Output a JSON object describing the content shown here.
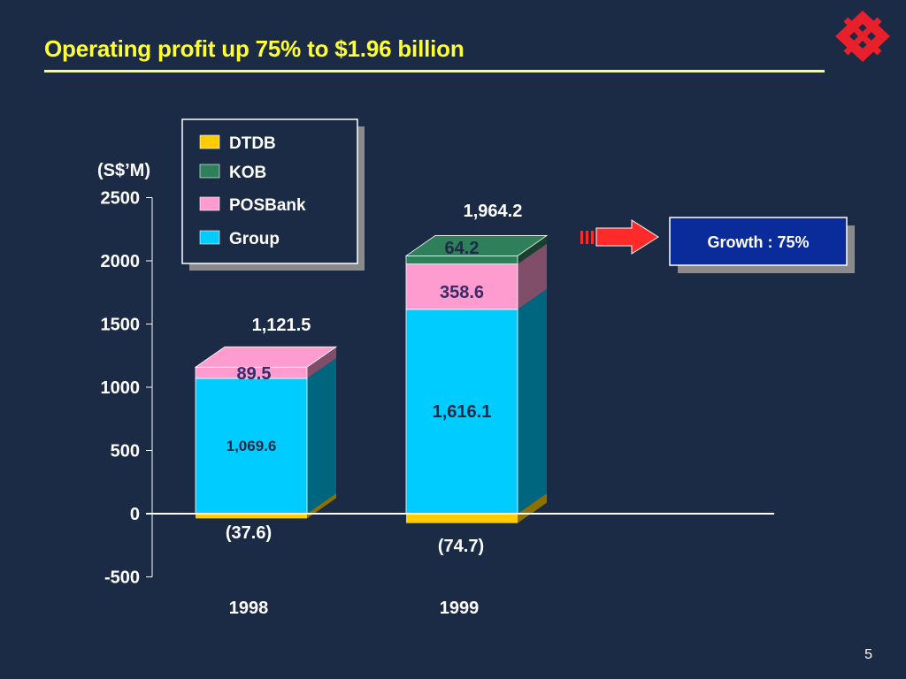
{
  "slide": {
    "title": "Operating profit up 75% to $1.96 billion",
    "page_number": "5",
    "growth_label": "Growth : 75%"
  },
  "colors": {
    "background": "#1c2b45",
    "title": "#ffff33",
    "DTDB": "#ffcc00",
    "KOB": "#2f7f5a",
    "POSBank": "#ff9ccf",
    "Group": "#00ccff",
    "growth_box": "#0a2c9a",
    "arrow": "#ff2a2a"
  },
  "chart_data": {
    "type": "bar",
    "stacked": true,
    "unit_label": "(S$’M)",
    "categories": [
      "1998",
      "1999"
    ],
    "ylim": [
      -500,
      2500
    ],
    "yticks": [
      -500,
      0,
      500,
      1000,
      1500,
      2000,
      2500
    ],
    "series": [
      {
        "name": "DTDB",
        "values": [
          -37.6,
          -74.7
        ],
        "labels": [
          "(37.6)",
          "(74.7)"
        ]
      },
      {
        "name": "KOB",
        "values": [
          0,
          64.2
        ],
        "labels": [
          "",
          "64.2"
        ]
      },
      {
        "name": "POSBank",
        "values": [
          89.5,
          358.6
        ],
        "labels": [
          "89.5",
          "358.6"
        ]
      },
      {
        "name": "Group",
        "values": [
          1069.6,
          1616.1
        ],
        "labels": [
          "1,069.6",
          "1,616.1"
        ]
      }
    ],
    "totals": [
      1121.5,
      1964.2
    ],
    "total_labels": [
      "1,121.5",
      "1,964.2"
    ],
    "legend_order": [
      "DTDB",
      "KOB",
      "POSBank",
      "Group"
    ],
    "legend_position": "top-left"
  }
}
